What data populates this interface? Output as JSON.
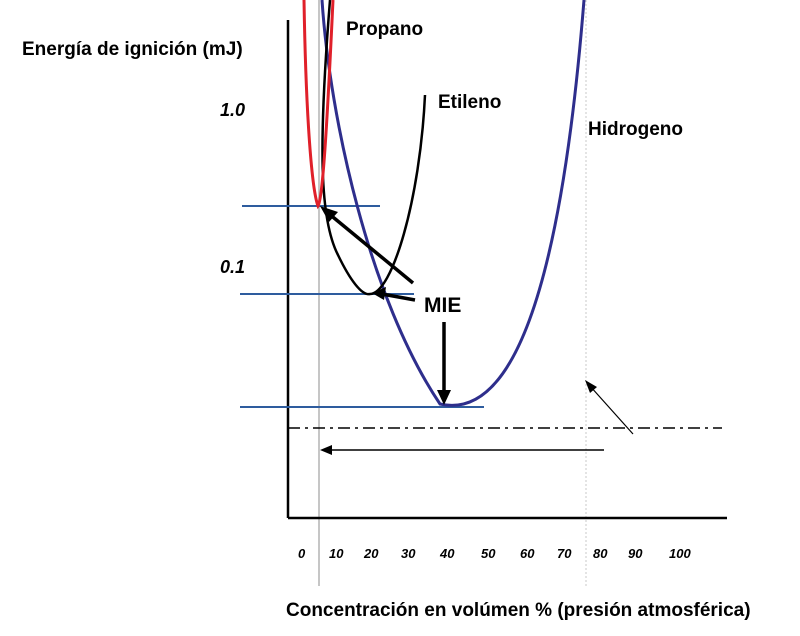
{
  "chart_data": {
    "type": "line",
    "ylabel": "Energía de ignición (mJ)",
    "xlabel": "Concentración en volúmen % (presión atmosférica)",
    "yscale": "log",
    "y_tick_labels": [
      "1.0",
      "0.1"
    ],
    "x_tick_labels": [
      "0",
      "10",
      "20",
      "30",
      "40",
      "50",
      "60",
      "70",
      "80",
      "90",
      "100"
    ],
    "series": [
      {
        "name": "Propano",
        "color": "#e0202a"
      },
      {
        "name": "Etileno",
        "color": "#000000"
      },
      {
        "name": "Hidrogeno",
        "color": "#2e2e8c"
      }
    ],
    "annotation": "MIE",
    "colors": {
      "axis": "#000000",
      "hline": "#2e5c9e",
      "vline": "#b4b4b4",
      "hydrogen": "#2e2e8c",
      "propane": "#e0202a",
      "ethylene": "#000000"
    }
  }
}
